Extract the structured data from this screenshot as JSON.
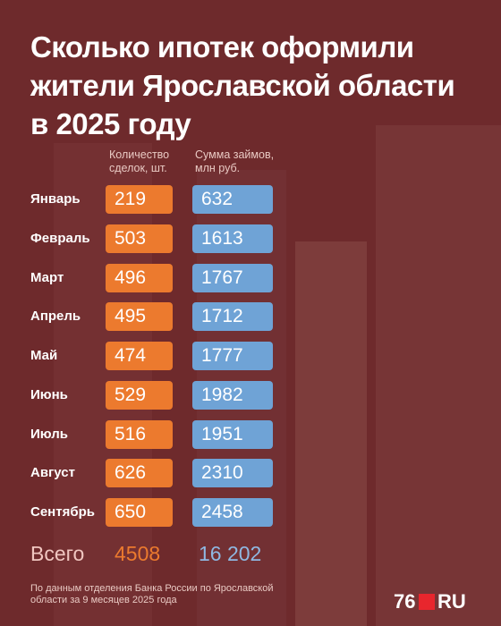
{
  "title": [
    "Сколько ипотек оформили",
    "жители Ярославской области",
    "в 2025 году"
  ],
  "table": {
    "headers": [
      "Количество\nсделок, шт.",
      "Сумма займов,\nмлн руб."
    ],
    "rows": [
      [
        "Январь",
        "219",
        "632"
      ],
      [
        "Февраль",
        "503",
        "1613"
      ],
      [
        "Март",
        "496",
        "1767"
      ],
      [
        "Апрель",
        "495",
        "1712"
      ],
      [
        "Май",
        "474",
        "1777"
      ],
      [
        "Июнь",
        "529",
        "1982"
      ],
      [
        "Июль",
        "516",
        "1951"
      ],
      [
        "Август",
        "626",
        "2310"
      ],
      [
        "Сентябрь",
        "650",
        "2458"
      ]
    ],
    "total": [
      "Всего",
      "4508",
      "16 202"
    ]
  },
  "footnote": "По данным отделения Банка России по Ярославской\nобласти за 9 месяцев 2025 года",
  "logo": [
    "76",
    "RU"
  ]
}
